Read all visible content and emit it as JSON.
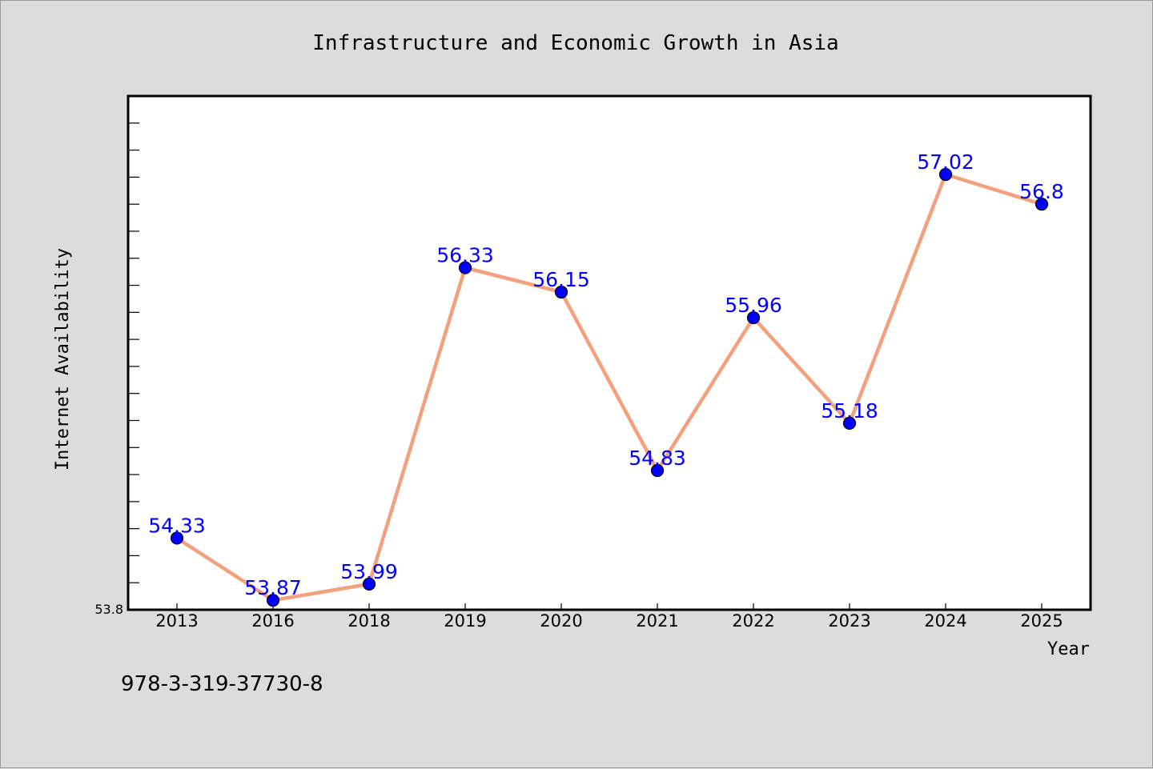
{
  "chart_data": {
    "type": "line",
    "title": "Infrastructure and Economic Growth in Asia",
    "xlabel": "Year",
    "ylabel": "Internet Availability",
    "categories": [
      "2013",
      "2016",
      "2018",
      "2019",
      "2020",
      "2021",
      "2022",
      "2023",
      "2024",
      "2025"
    ],
    "series": [
      {
        "values": [
          54.33,
          53.87,
          53.99,
          56.33,
          56.15,
          54.83,
          55.96,
          55.18,
          57.02,
          56.8
        ],
        "data_labels": [
          "54.33",
          "53.87",
          "53.99",
          "56.33",
          "56.15",
          "54.83",
          "55.96",
          "55.18",
          "57.02",
          "56.8"
        ]
      }
    ],
    "ylim": [
      53.8,
      57.6
    ],
    "y_tick_label": "53.8",
    "grid": false,
    "legend": "none",
    "colors": {
      "line": "#f4a07c",
      "marker": "#0000ff",
      "data_label": "#0000ff",
      "background": "#dcdcdc",
      "plot_background": "#ffffff"
    }
  },
  "footer": {
    "isbn": "978-3-319-37730-8"
  }
}
